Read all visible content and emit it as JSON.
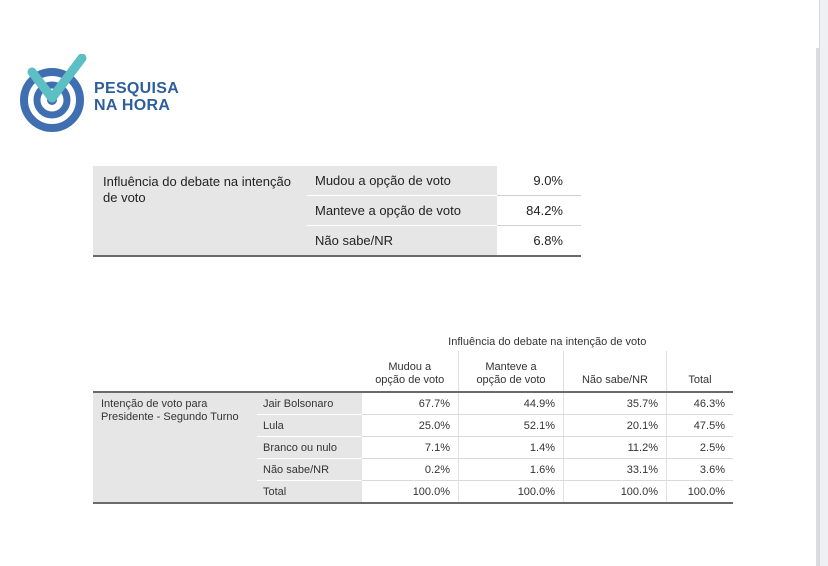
{
  "logo": {
    "line1": "PESQUISA",
    "line2": "NA HORA",
    "colors": {
      "ring": "#3f6fb0",
      "check": "#5bbfc3",
      "text": "#2e5f9c"
    }
  },
  "summary_table": {
    "row_header": "Influência do debate na intenção de voto",
    "rows": [
      {
        "label": "Mudou a opção de voto",
        "value": "9.0%"
      },
      {
        "label": "Manteve a opção de voto",
        "value": "84.2%"
      },
      {
        "label": "Não sabe/NR",
        "value": "6.8%"
      }
    ]
  },
  "crosstab": {
    "span_header": "Influência do debate na intenção de voto",
    "columns": [
      "Mudou a\nopção de voto",
      "Manteve a\nopção de voto",
      "Não sabe/NR",
      "Total"
    ],
    "row_group": "Intenção de voto para Presidente - Segundo Turno",
    "rows": [
      {
        "label": "Jair Bolsonaro",
        "values": [
          "67.7%",
          "44.9%",
          "35.7%",
          "46.3%"
        ]
      },
      {
        "label": "Lula",
        "values": [
          "25.0%",
          "52.1%",
          "20.1%",
          "47.5%"
        ]
      },
      {
        "label": "Branco ou nulo",
        "values": [
          "7.1%",
          "1.4%",
          "11.2%",
          "2.5%"
        ]
      },
      {
        "label": "Não sabe/NR",
        "values": [
          "0.2%",
          "1.6%",
          "33.1%",
          "3.6%"
        ]
      },
      {
        "label": "Total",
        "values": [
          "100.0%",
          "100.0%",
          "100.0%",
          "100.0%"
        ]
      }
    ]
  }
}
